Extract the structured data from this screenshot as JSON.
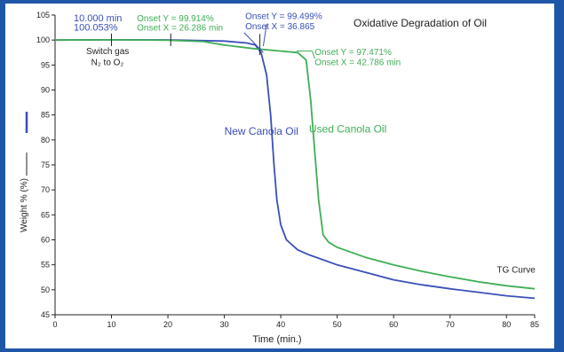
{
  "chart_data": {
    "type": "line",
    "title": "Oxidative Degradation of Oil",
    "xlabel": "Time (min.)",
    "ylabel": "Weight % (%)",
    "xlim": [
      0,
      85
    ],
    "ylim": [
      45,
      105
    ],
    "x_ticks": [
      0,
      10,
      20,
      30,
      40,
      50,
      60,
      70,
      80,
      85
    ],
    "y_ticks": [
      45,
      50,
      55,
      60,
      65,
      70,
      75,
      80,
      85,
      90,
      95,
      100,
      105
    ],
    "grid": false,
    "colors": {
      "new": "#3a4fb8",
      "used": "#3fae55",
      "text_dark": "#222222"
    },
    "series": [
      {
        "name": "New Canola Oil",
        "label_at": [
          30,
          81
        ],
        "points": [
          [
            0,
            100
          ],
          [
            10,
            100.05
          ],
          [
            20,
            100.03
          ],
          [
            30,
            99.8
          ],
          [
            34,
            99.4
          ],
          [
            35.5,
            99.0
          ],
          [
            36.5,
            97.5
          ],
          [
            37.5,
            93
          ],
          [
            38.2,
            85
          ],
          [
            38.8,
            75
          ],
          [
            39.3,
            68
          ],
          [
            40,
            63
          ],
          [
            41,
            60
          ],
          [
            43,
            58
          ],
          [
            45,
            57
          ],
          [
            50,
            55
          ],
          [
            55,
            53.5
          ],
          [
            60,
            52
          ],
          [
            65,
            51
          ],
          [
            70,
            50.2
          ],
          [
            75,
            49.5
          ],
          [
            80,
            48.8
          ],
          [
            85,
            48.3
          ]
        ]
      },
      {
        "name": "Used Canola Oil",
        "label_at": [
          45,
          81.5
        ],
        "points": [
          [
            0,
            100
          ],
          [
            10,
            100.05
          ],
          [
            20,
            99.95
          ],
          [
            26.3,
            99.7
          ],
          [
            30,
            99.0
          ],
          [
            35,
            98.3
          ],
          [
            40,
            97.8
          ],
          [
            43,
            97.5
          ],
          [
            44.5,
            96
          ],
          [
            45.3,
            88
          ],
          [
            46,
            78
          ],
          [
            46.7,
            68
          ],
          [
            47.5,
            61
          ],
          [
            48.5,
            59.5
          ],
          [
            50,
            58.5
          ],
          [
            55,
            56.5
          ],
          [
            60,
            55
          ],
          [
            65,
            53.7
          ],
          [
            70,
            52.6
          ],
          [
            75,
            51.6
          ],
          [
            80,
            50.8
          ],
          [
            85,
            50.2
          ]
        ]
      }
    ],
    "annotations": [
      {
        "text": "10.000 min",
        "color": "#3a4fb8",
        "x": 3.3,
        "y": 103.8,
        "size": 11
      },
      {
        "text": "100.053%",
        "color": "#3a4fb8",
        "x": 3.3,
        "y": 101.9,
        "size": 11
      },
      {
        "text": "Onset Y = 99.914%",
        "color": "#3fae55",
        "x": 14.5,
        "y": 103.8,
        "size": 10
      },
      {
        "text": "Onset X = 26.286 min",
        "color": "#3fae55",
        "x": 14.5,
        "y": 101.9,
        "size": 10
      },
      {
        "text": "Onset Y = 99.499%",
        "color": "#3a4fb8",
        "x": 33.7,
        "y": 104.2,
        "size": 10
      },
      {
        "text": "Onset X = 36.865",
        "color": "#3a4fb8",
        "x": 33.7,
        "y": 102.2,
        "size": 10
      },
      {
        "text": "Onset Y = 97.471%",
        "color": "#3fae55",
        "x": 46,
        "y": 97.0,
        "size": 10
      },
      {
        "text": "Onset X = 42.786 min",
        "color": "#3fae55",
        "x": 46,
        "y": 95.0,
        "size": 10
      },
      {
        "text": "Switch gas",
        "color": "#222222",
        "x": 5.5,
        "y": 97.2,
        "size": 10
      },
      {
        "text": "N₂ to O₂",
        "color": "#222222",
        "x": 6.4,
        "y": 95.0,
        "size": 10
      },
      {
        "text": "TG Curve",
        "color": "#222222",
        "x": 78.3,
        "y": 53.4,
        "size": 10
      }
    ]
  }
}
